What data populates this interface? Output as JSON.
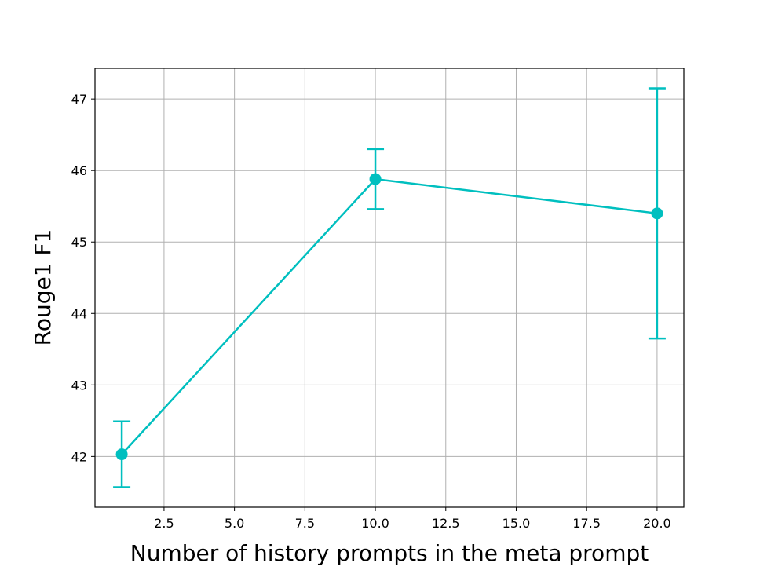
{
  "chart_data": {
    "type": "line",
    "x_label": "Number of history prompts in the meta prompt",
    "y_label": "Rouge1 F1",
    "x": [
      1,
      10,
      20
    ],
    "series": [
      {
        "color": "#00bfbf",
        "values": [
          42.03,
          45.88,
          45.4
        ],
        "errors": [
          0.46,
          0.42,
          1.75
        ]
      }
    ],
    "xlim": [
      0.05,
      20.95
    ],
    "ylim": [
      41.29,
      47.43
    ],
    "xticks": [
      {
        "value": 2.5,
        "label": "2.5"
      },
      {
        "value": 5,
        "label": "5.0"
      },
      7.5,
      {
        "value": 10,
        "label": "10.0"
      },
      12.5,
      {
        "value": 15,
        "label": "15.0"
      },
      17.5,
      {
        "value": 20,
        "label": "20.0"
      }
    ],
    "yticks": [
      42,
      43,
      44,
      45,
      46,
      47
    ],
    "grid": true
  }
}
